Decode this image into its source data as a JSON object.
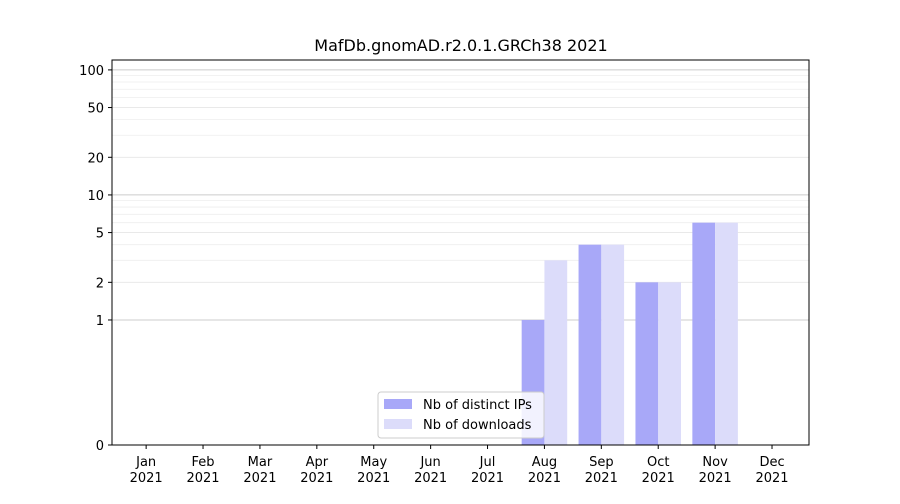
{
  "chart_data": {
    "type": "bar",
    "title": "MafDb.gnomAD.r2.0.1.GRCh38 2021",
    "xlabel": "",
    "ylabel": "",
    "yscale": "symlog",
    "ylim": [
      0,
      120
    ],
    "y_ticks": [
      0,
      1,
      2,
      5,
      10,
      20,
      50,
      100
    ],
    "grid": true,
    "legend_position": "lower-center",
    "categories": [
      {
        "month": "Jan",
        "year": "2021"
      },
      {
        "month": "Feb",
        "year": "2021"
      },
      {
        "month": "Mar",
        "year": "2021"
      },
      {
        "month": "Apr",
        "year": "2021"
      },
      {
        "month": "May",
        "year": "2021"
      },
      {
        "month": "Jun",
        "year": "2021"
      },
      {
        "month": "Jul",
        "year": "2021"
      },
      {
        "month": "Aug",
        "year": "2021"
      },
      {
        "month": "Sep",
        "year": "2021"
      },
      {
        "month": "Oct",
        "year": "2021"
      },
      {
        "month": "Nov",
        "year": "2021"
      },
      {
        "month": "Dec",
        "year": "2021"
      }
    ],
    "series": [
      {
        "name": "Nb of distinct IPs",
        "color": "#a8a8f8",
        "values": [
          0,
          0,
          0,
          0,
          0,
          0,
          0,
          1,
          4,
          2,
          6,
          0
        ]
      },
      {
        "name": "Nb of downloads",
        "color": "#dcdcfa",
        "values": [
          0,
          0,
          0,
          0,
          0,
          0,
          0,
          3,
          4,
          2,
          6,
          0
        ]
      }
    ]
  }
}
